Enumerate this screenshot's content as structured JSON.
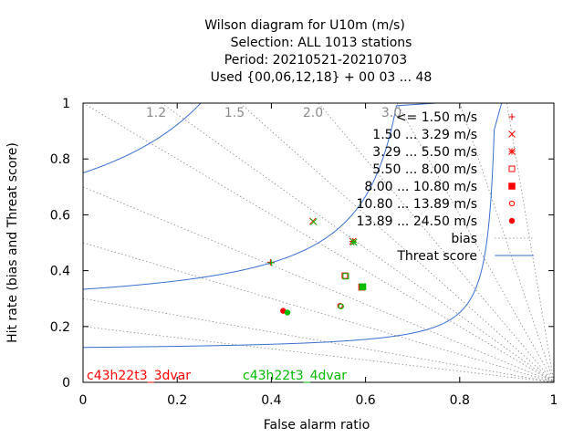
{
  "chart_data": {
    "type": "scatter",
    "title_lines": [
      "Wilson diagram  for U10m (m/s)",
      "Selection: ALL   1013 stations",
      "Period: 20210521-20210703",
      "Used {00,06,12,18} + 00 03 ... 48"
    ],
    "xlabel": "False alarm ratio",
    "ylabel": "Hit rate (bias and Threat score)",
    "xlim": [
      0,
      1
    ],
    "ylim": [
      0,
      1
    ],
    "x_ticks": [
      "0",
      "0.2",
      "0.4",
      "0.6",
      "0.8",
      "1"
    ],
    "y_ticks": [
      "0",
      "0.2",
      "0.4",
      "0.6",
      "0.8",
      "1"
    ],
    "bias_lines": [
      0.2,
      0.3,
      0.5,
      0.7,
      1.0,
      1.2,
      1.5,
      2.0,
      3.0,
      5.0,
      10.0
    ],
    "bias_labels": [
      "1.2",
      "1.5",
      "2.0",
      "3.0"
    ],
    "threat_score_curves": [
      0.1,
      0.2,
      0.3,
      0.4,
      0.5,
      0.6,
      0.7,
      0.8,
      0.9
    ],
    "legend_placement": "top-right",
    "legend": [
      {
        "label": "<= 1.50 m/s",
        "marker": "plus"
      },
      {
        "label": "1.50 ... 3.29 m/s",
        "marker": "cross"
      },
      {
        "label": "3.29 ... 5.50 m/s",
        "marker": "star"
      },
      {
        "label": "5.50 ... 8.00 m/s",
        "marker": "open-square"
      },
      {
        "label": "8.00 ... 10.80 m/s",
        "marker": "filled-square"
      },
      {
        "label": "10.80 ... 13.89 m/s",
        "marker": "open-circle"
      },
      {
        "label": "13.89 ... 24.50 m/s",
        "marker": "filled-circle"
      },
      {
        "label": "bias",
        "marker": "dotted-line"
      },
      {
        "label": "Threat score",
        "marker": "solid-line"
      }
    ],
    "series": [
      {
        "name": "c43h22t3_3dvar",
        "color": "#ff0000",
        "points": [
          {
            "x": 0.398,
            "y": 0.43,
            "class": "<= 1.50 m/s"
          },
          {
            "x": 0.488,
            "y": 0.577,
            "class": "1.50 ... 3.29 m/s"
          },
          {
            "x": 0.573,
            "y": 0.505,
            "class": "3.29 ... 5.50 m/s"
          },
          {
            "x": 0.556,
            "y": 0.382,
            "class": "5.50 ... 8.00 m/s"
          },
          {
            "x": 0.592,
            "y": 0.341,
            "class": "8.00 ... 10.80 m/s"
          },
          {
            "x": 0.546,
            "y": 0.274,
            "class": "10.80 ... 13.89 m/s"
          },
          {
            "x": 0.425,
            "y": 0.256,
            "class": "13.89 ... 24.50 m/s"
          }
        ]
      },
      {
        "name": "c43h22t3_4dvar",
        "color": "#00bb00",
        "points": [
          {
            "x": 0.4,
            "y": 0.428,
            "class": "<= 1.50 m/s"
          },
          {
            "x": 0.49,
            "y": 0.575,
            "class": "1.50 ... 3.29 m/s"
          },
          {
            "x": 0.575,
            "y": 0.502,
            "class": "3.29 ... 5.50 m/s"
          },
          {
            "x": 0.558,
            "y": 0.38,
            "class": "5.50 ... 8.00 m/s"
          },
          {
            "x": 0.594,
            "y": 0.342,
            "class": "8.00 ... 10.80 m/s"
          },
          {
            "x": 0.548,
            "y": 0.272,
            "class": "10.80 ... 13.89 m/s"
          },
          {
            "x": 0.434,
            "y": 0.25,
            "class": "13.89 ... 24.50 m/s"
          }
        ]
      }
    ]
  }
}
